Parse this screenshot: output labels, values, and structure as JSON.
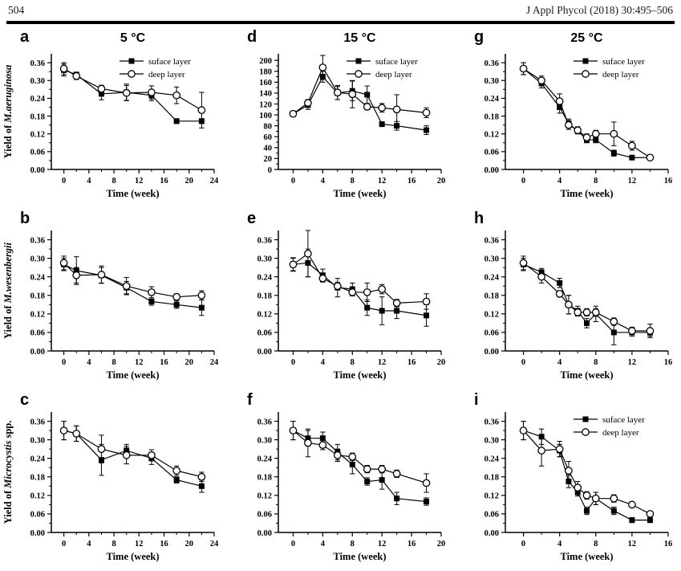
{
  "header": {
    "page_number": "504",
    "journal": "J Appl Phycol (2018) 30:495–506"
  },
  "chart_data": [
    {
      "label": "a",
      "type": "line",
      "title": "5 °C",
      "xlabel": "Time (week)",
      "ylabel": {
        "plain": "Yield of ",
        "italic": "M.aeruginosa",
        "suffix": ""
      },
      "xlim": [
        -2,
        24
      ],
      "xticks": [
        0,
        4,
        8,
        12,
        16,
        20,
        24
      ],
      "ylim": [
        0,
        0.39
      ],
      "yticks": [
        0,
        0.06,
        0.12,
        0.18,
        0.24,
        0.3,
        0.36
      ],
      "ytick_decimals": 2,
      "legend": true,
      "grid": false,
      "x": [
        0,
        2,
        6,
        10,
        14,
        18,
        22
      ],
      "series": [
        {
          "name": "suface layer",
          "marker": "filled-square",
          "values": [
            0.335,
            0.32,
            0.255,
            0.26,
            0.25,
            0.163,
            0.163
          ],
          "err": [
            0.02,
            0.008,
            0.02,
            0.028,
            0.018,
            0.008,
            0.008
          ]
        },
        {
          "name": "deep layer",
          "marker": "open-circle",
          "values": [
            0.34,
            0.315,
            0.272,
            0.258,
            0.26,
            0.25,
            0.2
          ],
          "err": [
            0.02,
            0.012,
            0.012,
            0.025,
            0.022,
            0.028,
            0.06
          ]
        }
      ]
    },
    {
      "label": "d",
      "type": "line",
      "title": "15 °C",
      "xlabel": "Time (week)",
      "ylabel": null,
      "xlim": [
        -2,
        20
      ],
      "xticks": [
        0,
        4,
        8,
        12,
        16,
        20
      ],
      "ylim": [
        0,
        212
      ],
      "yticks": [
        0,
        20,
        40,
        60,
        80,
        100,
        120,
        140,
        160,
        180,
        200
      ],
      "ytick_decimals": 0,
      "legend": true,
      "grid": false,
      "x": [
        0,
        2,
        4,
        6,
        8,
        10,
        12,
        14,
        18
      ],
      "series": [
        {
          "name": "suface layer",
          "marker": "filled-square",
          "values": [
            102,
            118,
            170,
            140,
            144,
            137,
            83,
            80,
            72
          ],
          "err": [
            5,
            8,
            10,
            12,
            18,
            16,
            4,
            8,
            8
          ]
        },
        {
          "name": "deep layer",
          "marker": "open-circle",
          "values": [
            102,
            122,
            187,
            141,
            138,
            115,
            113,
            110,
            104
          ],
          "err": [
            5,
            6,
            22,
            13,
            25,
            5,
            8,
            27,
            9
          ]
        }
      ]
    },
    {
      "label": "g",
      "type": "line",
      "title": "25 °C",
      "xlabel": "Time (week)",
      "ylabel": null,
      "xlim": [
        -2,
        16
      ],
      "xticks": [
        0,
        4,
        8,
        12,
        16
      ],
      "ylim": [
        0,
        0.39
      ],
      "yticks": [
        0,
        0.06,
        0.12,
        0.18,
        0.24,
        0.3,
        0.36
      ],
      "ytick_decimals": 2,
      "legend": true,
      "grid": false,
      "x": [
        0,
        2,
        4,
        5,
        6,
        7,
        8,
        10,
        12,
        14
      ],
      "series": [
        {
          "name": "suface layer",
          "marker": "filled-square",
          "values": [
            0.34,
            0.29,
            0.21,
            0.155,
            0.13,
            0.1,
            0.1,
            0.055,
            0.04,
            0.04
          ],
          "err": [
            0.02,
            0.015,
            0.02,
            0.015,
            0.01,
            0.01,
            0.01,
            0.01,
            0.005,
            0.005
          ]
        },
        {
          "name": "deep layer",
          "marker": "open-circle",
          "values": [
            0.34,
            0.3,
            0.23,
            0.15,
            0.132,
            0.108,
            0.12,
            0.12,
            0.08,
            0.04
          ],
          "err": [
            0.02,
            0.015,
            0.025,
            0.015,
            0.012,
            0.012,
            0.012,
            0.04,
            0.015,
            0.005
          ]
        }
      ]
    },
    {
      "label": "b",
      "type": "line",
      "title": "",
      "xlabel": "Time (week)",
      "ylabel": {
        "plain": "Yield of ",
        "italic": "M.wesenbergii",
        "suffix": ""
      },
      "xlim": [
        -2,
        24
      ],
      "xticks": [
        0,
        4,
        8,
        12,
        16,
        20,
        24
      ],
      "ylim": [
        0,
        0.39
      ],
      "yticks": [
        0,
        0.06,
        0.12,
        0.18,
        0.24,
        0.3,
        0.36
      ],
      "ytick_decimals": 2,
      "legend": false,
      "grid": false,
      "x": [
        0,
        2,
        6,
        10,
        14,
        18,
        22
      ],
      "series": [
        {
          "name": "suface layer",
          "marker": "filled-square",
          "values": [
            0.28,
            0.26,
            0.245,
            0.205,
            0.16,
            0.15,
            0.14
          ],
          "err": [
            0.02,
            0.045,
            0.025,
            0.02,
            0.012,
            0.012,
            0.025
          ]
        },
        {
          "name": "deep layer",
          "marker": "open-circle",
          "values": [
            0.285,
            0.245,
            0.247,
            0.21,
            0.19,
            0.175,
            0.18
          ],
          "err": [
            0.022,
            0.025,
            0.028,
            0.028,
            0.018,
            0.01,
            0.015
          ]
        }
      ]
    },
    {
      "label": "e",
      "type": "line",
      "title": "",
      "xlabel": "Time (week)",
      "ylabel": null,
      "xlim": [
        -2,
        20
      ],
      "xticks": [
        0,
        4,
        8,
        12,
        16,
        20
      ],
      "ylim": [
        0,
        0.39
      ],
      "yticks": [
        0,
        0.06,
        0.12,
        0.18,
        0.24,
        0.3,
        0.36
      ],
      "ytick_decimals": 2,
      "legend": false,
      "grid": false,
      "x": [
        0,
        2,
        4,
        6,
        8,
        10,
        12,
        14,
        18
      ],
      "series": [
        {
          "name": "suface layer",
          "marker": "filled-square",
          "values": [
            0.28,
            0.285,
            0.245,
            0.205,
            0.2,
            0.14,
            0.13,
            0.13,
            0.115
          ],
          "err": [
            0.02,
            0.045,
            0.02,
            0.03,
            0.02,
            0.025,
            0.045,
            0.025,
            0.035
          ]
        },
        {
          "name": "deep layer",
          "marker": "open-circle",
          "values": [
            0.28,
            0.315,
            0.235,
            0.21,
            0.19,
            0.19,
            0.2,
            0.155,
            0.16
          ],
          "err": [
            0.022,
            0.075,
            0.012,
            0.012,
            0.012,
            0.03,
            0.015,
            0.012,
            0.025
          ]
        }
      ]
    },
    {
      "label": "h",
      "type": "line",
      "title": "",
      "xlabel": "Time (week)",
      "ylabel": null,
      "xlim": [
        -2,
        16
      ],
      "xticks": [
        0,
        4,
        8,
        12,
        16
      ],
      "ylim": [
        0,
        0.39
      ],
      "yticks": [
        0,
        0.06,
        0.12,
        0.18,
        0.24,
        0.3,
        0.36
      ],
      "ytick_decimals": 2,
      "legend": false,
      "grid": false,
      "x": [
        0,
        2,
        4,
        5,
        6,
        7,
        8,
        10,
        12,
        14
      ],
      "series": [
        {
          "name": "suface layer",
          "marker": "filled-square",
          "values": [
            0.28,
            0.255,
            0.22,
            0.15,
            0.13,
            0.09,
            0.12,
            0.06,
            0.06,
            0.06
          ],
          "err": [
            0.02,
            0.012,
            0.015,
            0.03,
            0.015,
            0.015,
            0.025,
            0.04,
            0.012,
            0.012
          ]
        },
        {
          "name": "deep layer",
          "marker": "open-circle",
          "values": [
            0.285,
            0.24,
            0.185,
            0.15,
            0.125,
            0.125,
            0.125,
            0.095,
            0.065,
            0.065
          ],
          "err": [
            0.022,
            0.02,
            0.01,
            0.03,
            0.012,
            0.012,
            0.012,
            0.012,
            0.012,
            0.022
          ]
        }
      ]
    },
    {
      "label": "c",
      "type": "line",
      "title": "",
      "xlabel": "Time (week)",
      "ylabel": {
        "plain": "Yield of ",
        "italic": "Microcystis",
        "suffix": " spp."
      },
      "xlim": [
        -2,
        24
      ],
      "xticks": [
        0,
        4,
        8,
        12,
        16,
        20,
        24
      ],
      "ylim": [
        0,
        0.39
      ],
      "yticks": [
        0,
        0.06,
        0.12,
        0.18,
        0.24,
        0.3,
        0.36
      ],
      "ytick_decimals": 2,
      "legend": false,
      "grid": false,
      "x": [
        0,
        2,
        6,
        10,
        14,
        18,
        22
      ],
      "series": [
        {
          "name": "suface layer",
          "marker": "filled-square",
          "values": [
            0.33,
            0.32,
            0.235,
            0.265,
            0.24,
            0.17,
            0.15
          ],
          "err": [
            0.03,
            0.025,
            0.05,
            0.02,
            0.02,
            0.01,
            0.02
          ]
        },
        {
          "name": "deep layer",
          "marker": "open-circle",
          "values": [
            0.33,
            0.32,
            0.27,
            0.25,
            0.25,
            0.2,
            0.18
          ],
          "err": [
            0.03,
            0.025,
            0.045,
            0.028,
            0.018,
            0.015,
            0.015
          ]
        }
      ]
    },
    {
      "label": "f",
      "type": "line",
      "title": "",
      "xlabel": "Time (week)",
      "ylabel": null,
      "xlim": [
        -2,
        20
      ],
      "xticks": [
        0,
        4,
        8,
        12,
        16,
        20
      ],
      "ylim": [
        0,
        0.39
      ],
      "yticks": [
        0,
        0.06,
        0.12,
        0.18,
        0.24,
        0.3,
        0.36
      ],
      "ytick_decimals": 2,
      "legend": false,
      "grid": false,
      "x": [
        0,
        2,
        4,
        6,
        8,
        10,
        12,
        14,
        18
      ],
      "series": [
        {
          "name": "suface layer",
          "marker": "filled-square",
          "values": [
            0.33,
            0.305,
            0.305,
            0.26,
            0.22,
            0.165,
            0.17,
            0.11,
            0.1
          ],
          "err": [
            0.03,
            0.025,
            0.02,
            0.025,
            0.03,
            0.012,
            0.03,
            0.02,
            0.012
          ]
        },
        {
          "name": "deep layer",
          "marker": "open-circle",
          "values": [
            0.33,
            0.29,
            0.283,
            0.25,
            0.245,
            0.205,
            0.205,
            0.19,
            0.16
          ],
          "err": [
            0.03,
            0.045,
            0.015,
            0.02,
            0.012,
            0.012,
            0.012,
            0.012,
            0.03
          ]
        }
      ]
    },
    {
      "label": "i",
      "type": "line",
      "title": "",
      "xlabel": "Time (week)",
      "ylabel": null,
      "xlim": [
        -2,
        16
      ],
      "xticks": [
        0,
        4,
        8,
        12,
        16
      ],
      "ylim": [
        0,
        0.39
      ],
      "yticks": [
        0,
        0.06,
        0.12,
        0.18,
        0.24,
        0.3,
        0.36
      ],
      "ytick_decimals": 2,
      "legend": true,
      "grid": false,
      "x": [
        0,
        2,
        4,
        5,
        6,
        7,
        8,
        10,
        12,
        14
      ],
      "series": [
        {
          "name": "suface layer",
          "marker": "filled-square",
          "values": [
            0.33,
            0.31,
            0.265,
            0.165,
            0.13,
            0.07,
            0.11,
            0.07,
            0.04,
            0.04
          ],
          "err": [
            0.03,
            0.025,
            0.02,
            0.02,
            0.012,
            0.012,
            0.02,
            0.012,
            0.008,
            0.008
          ]
        },
        {
          "name": "deep layer",
          "marker": "open-circle",
          "values": [
            0.33,
            0.265,
            0.27,
            0.2,
            0.145,
            0.12,
            0.11,
            0.11,
            0.09,
            0.06
          ],
          "err": [
            0.03,
            0.05,
            0.025,
            0.03,
            0.02,
            0.012,
            0.02,
            0.012,
            0.008,
            0.008
          ]
        }
      ]
    }
  ]
}
